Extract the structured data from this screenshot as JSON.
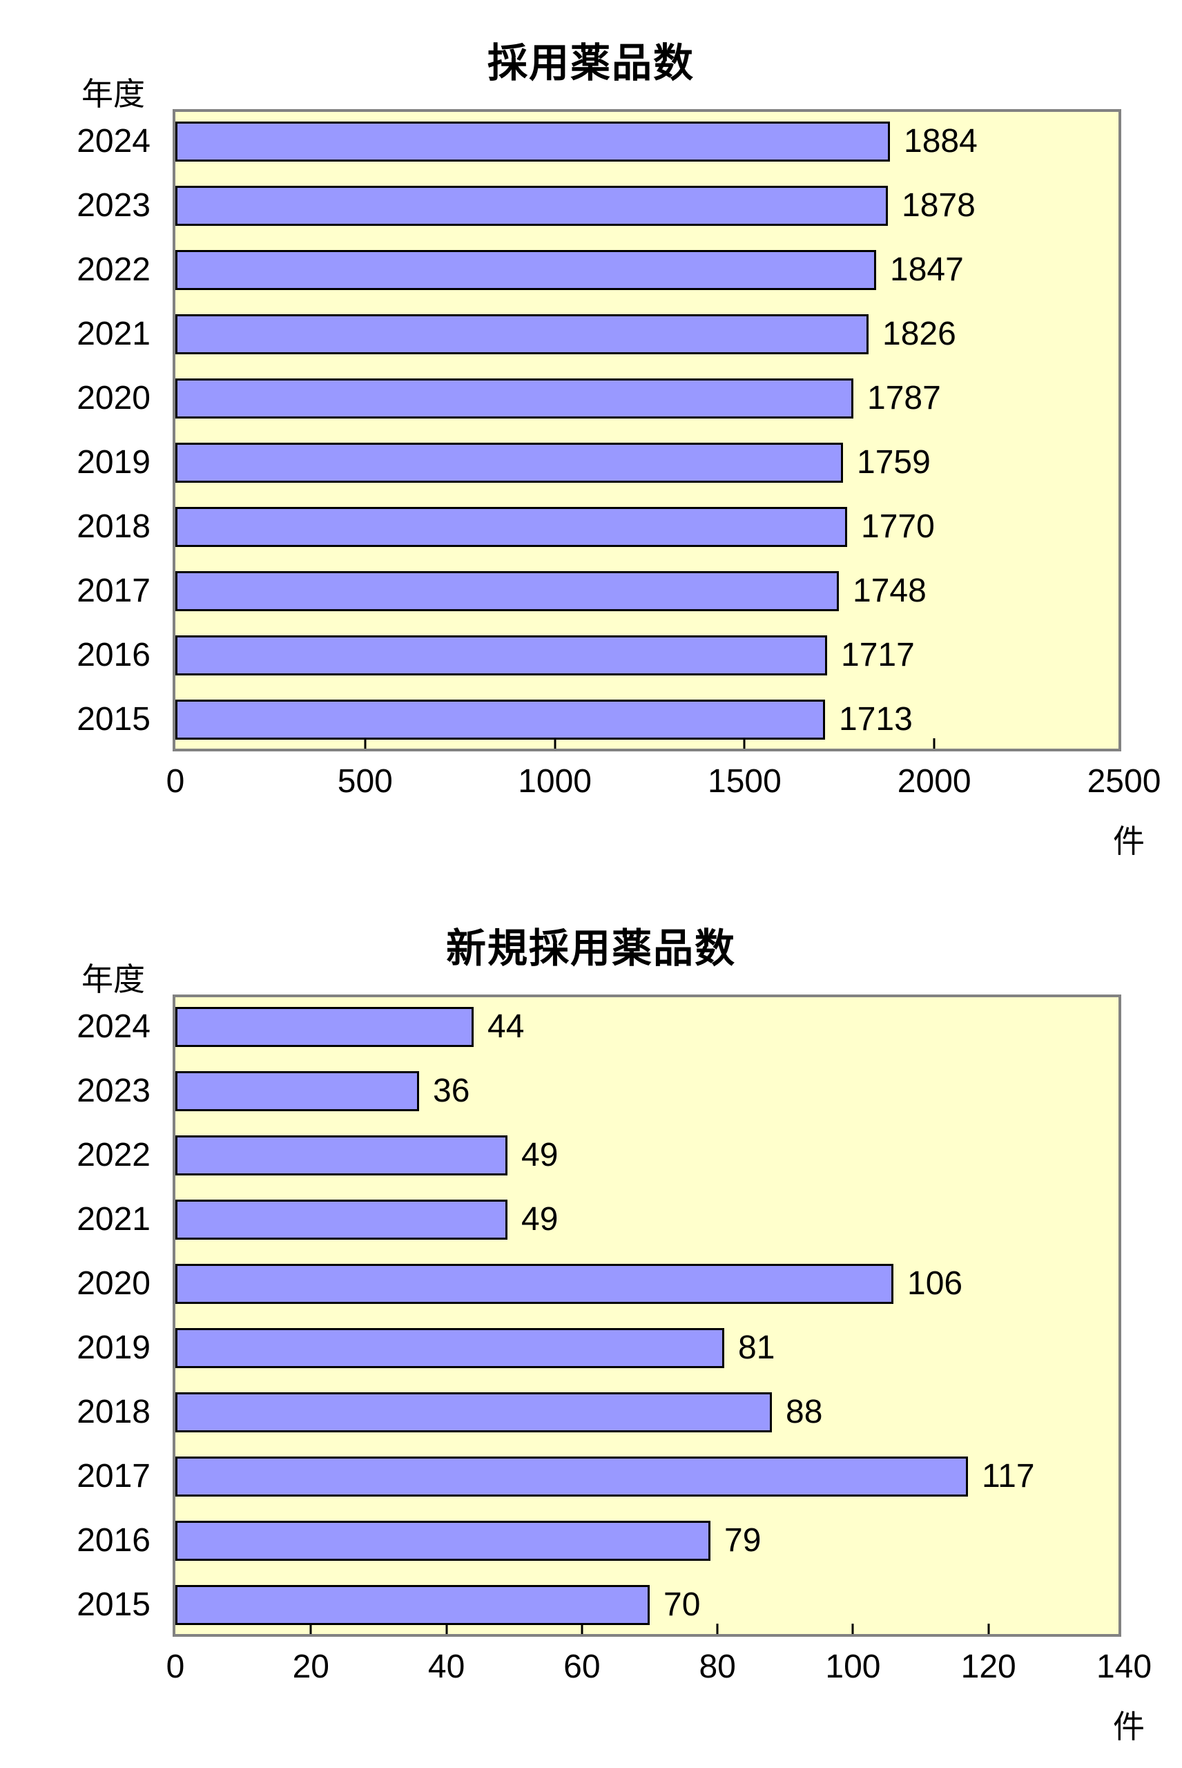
{
  "page": {
    "background": "#ffffff",
    "text_color": "#000000"
  },
  "chart_data": [
    {
      "type": "bar",
      "orientation": "horizontal",
      "title": "採用薬品数",
      "ylabel": "年度",
      "xlabel": "",
      "unit_label": "件",
      "categories": [
        "2024",
        "2023",
        "2022",
        "2021",
        "2020",
        "2019",
        "2018",
        "2017",
        "2016",
        "2015"
      ],
      "values": [
        1884,
        1878,
        1847,
        1826,
        1787,
        1759,
        1770,
        1748,
        1717,
        1713
      ],
      "xlim": [
        0,
        2500
      ],
      "xticks": [
        0,
        500,
        1000,
        1500,
        2000,
        2500
      ],
      "grid": false,
      "legend": false,
      "data_labels": true,
      "bar_color": "#9999ff",
      "bar_border_color": "#000000",
      "plot_bg_color": "#ffffcc",
      "plot_border_color": "#828282"
    },
    {
      "type": "bar",
      "orientation": "horizontal",
      "title": "新規採用薬品数",
      "ylabel": "年度",
      "xlabel": "",
      "unit_label": "件",
      "categories": [
        "2024",
        "2023",
        "2022",
        "2021",
        "2020",
        "2019",
        "2018",
        "2017",
        "2016",
        "2015"
      ],
      "values": [
        44,
        36,
        49,
        49,
        106,
        81,
        88,
        117,
        79,
        70
      ],
      "xlim": [
        0,
        140
      ],
      "xticks": [
        0,
        20,
        40,
        60,
        80,
        100,
        120,
        140
      ],
      "grid": false,
      "legend": false,
      "data_labels": true,
      "bar_color": "#9999ff",
      "bar_border_color": "#000000",
      "plot_bg_color": "#ffffcc",
      "plot_border_color": "#828282"
    }
  ]
}
